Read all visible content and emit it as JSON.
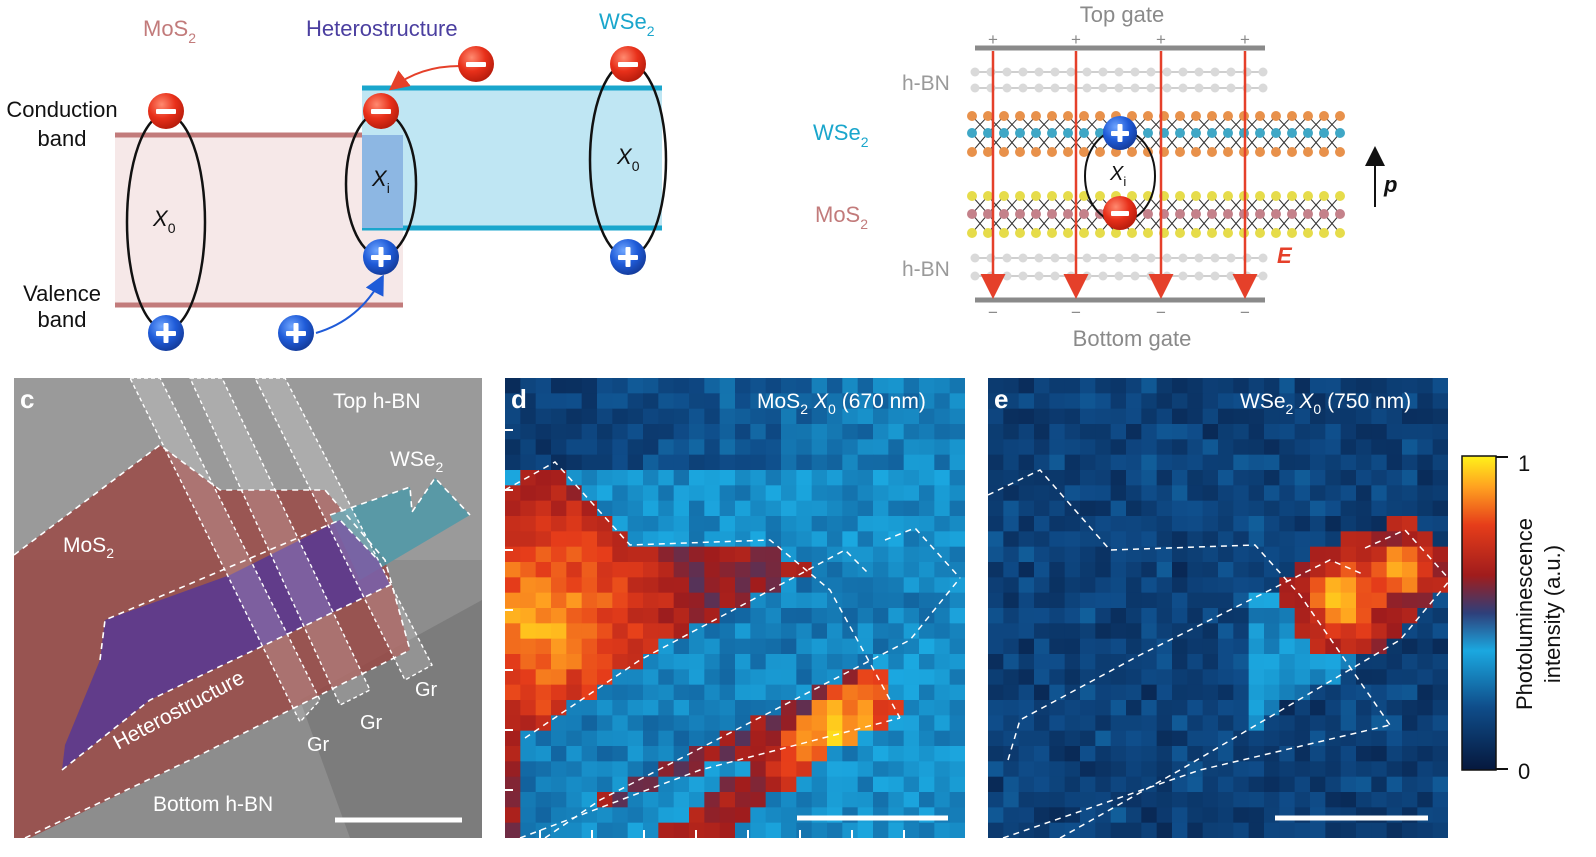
{
  "band_diagram": {
    "mos2_label": {
      "main": "MoS",
      "sub": "2"
    },
    "hetero_label": "Heterostructure",
    "wse2_label": {
      "main": "WSe",
      "sub": "2"
    },
    "conduction_label": [
      "Conduction",
      "band"
    ],
    "valence_label": [
      "Valence",
      "band"
    ],
    "x0_left": {
      "main": "X",
      "sub": "0"
    },
    "xi": {
      "main": "X",
      "sub": "i"
    },
    "x0_right": {
      "main": "X",
      "sub": "0"
    },
    "colors": {
      "mos2": "#c27b7b",
      "wse2": "#1aa6cc",
      "hetero": "#4b3fa0",
      "electron": "#e53015",
      "hole": "#1f5bd8"
    }
  },
  "device_diagram": {
    "top_gate": "Top gate",
    "bottom_gate": "Bottom gate",
    "hbn_top": "h-BN",
    "hbn_bottom": "h-BN",
    "wse2_label": {
      "main": "WSe",
      "sub": "2"
    },
    "mos2_label": {
      "main": "MoS",
      "sub": "2"
    },
    "xi": {
      "main": "X",
      "sub": "i"
    },
    "field_label": "E",
    "dipole_label": "p",
    "plus_sign": "+",
    "minus_sign": "−"
  },
  "panel_c": {
    "letter": "c",
    "top_hbn": "Top h-BN",
    "wse2": {
      "main": "WSe",
      "sub": "2"
    },
    "mos2": {
      "main": "MoS",
      "sub": "2"
    },
    "hetero": "Heterostructure",
    "gr": "Gr",
    "bottom_hbn": "Bottom h-BN"
  },
  "panel_d": {
    "letter": "d",
    "title": {
      "pre": "MoS",
      "sub": "2",
      "x": "X",
      "xsub": "0",
      "post": "(670 nm)"
    }
  },
  "panel_e": {
    "letter": "e",
    "title": {
      "pre": "WSe",
      "sub": "2",
      "x": "X",
      "xsub": "0",
      "post": "(750 nm)"
    }
  },
  "colorbar": {
    "max": "1",
    "min": "0",
    "label_lines": [
      "Photoluminescence",
      "intensity (a.u.)"
    ]
  }
}
